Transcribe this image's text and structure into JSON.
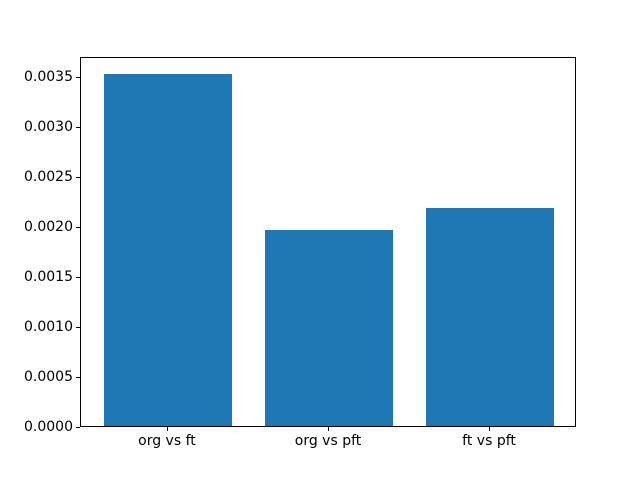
{
  "chart_data": {
    "type": "bar",
    "categories": [
      "org vs ft",
      "org vs pft",
      "ft vs pft"
    ],
    "x": [
      0,
      1,
      2
    ],
    "values": [
      0.00352,
      0.00196,
      0.00218
    ],
    "title": "",
    "xlabel": "",
    "ylabel": "",
    "ylim": [
      0,
      0.0037
    ],
    "xlim": [
      -0.54,
      2.54
    ],
    "bar_width": 0.8,
    "yticks": [
      0.0,
      0.0005,
      0.001,
      0.0015,
      0.002,
      0.0025,
      0.003,
      0.0035
    ],
    "ytick_labels": [
      "0.0000",
      "0.0005",
      "0.0010",
      "0.0015",
      "0.0020",
      "0.0025",
      "0.0030",
      "0.0035"
    ],
    "grid": false,
    "legend": null,
    "bar_color": "#1f77b4"
  },
  "figure": {
    "background": "#ffffff",
    "spine_color": "#000000",
    "tick_color": "#000000"
  }
}
